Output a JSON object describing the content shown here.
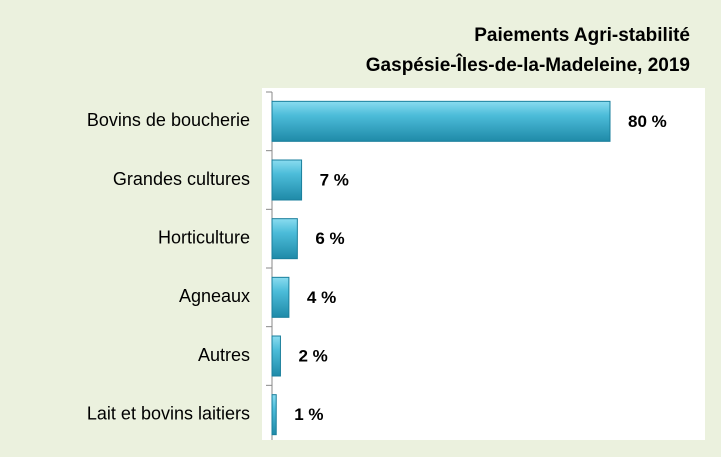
{
  "chart_data": {
    "type": "bar",
    "orientation": "horizontal",
    "title": "Paiements Agri-stabilité",
    "subtitle": "Gaspésie-Îles-de-la-Madeleine, 2019",
    "categories": [
      "Bovins de boucherie",
      "Grandes cultures",
      "Horticulture",
      "Agneaux",
      "Autres",
      "Lait et bovins laitiers"
    ],
    "values": [
      80,
      7,
      6,
      4,
      2,
      1
    ],
    "value_labels": [
      "80 %",
      "7 %",
      "6 %",
      "4 %",
      "2 %",
      "1 %"
    ],
    "color": "#3aaccb"
  }
}
